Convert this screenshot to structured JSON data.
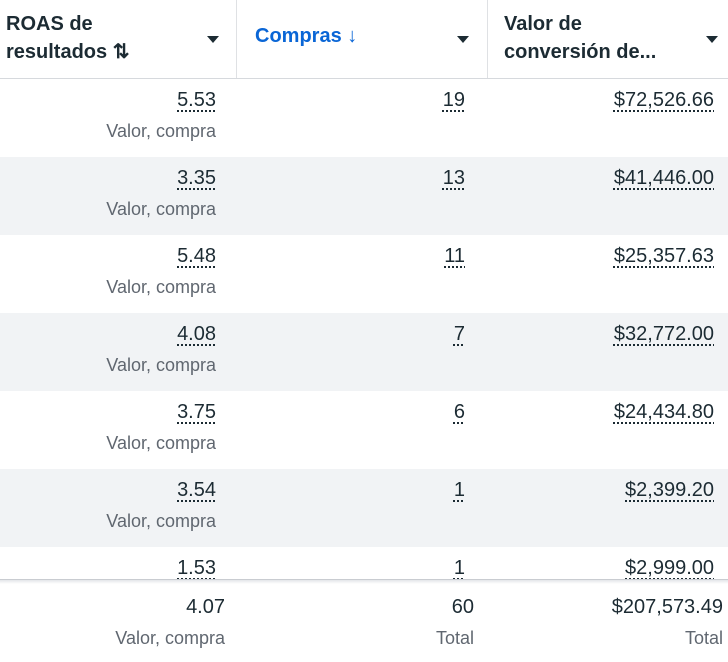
{
  "header": {
    "columns": [
      {
        "title_line1": "ROAS de",
        "title_line2": "resultados ⇅",
        "menu_icon": "caret-down-icon"
      },
      {
        "title": "Compras ↓",
        "sorted": true,
        "accent": "#0a66d6",
        "menu_icon": "caret-down-icon"
      },
      {
        "title_line1": "Valor de",
        "title_line2": "conversión de...",
        "menu_icon": "caret-down-icon"
      }
    ]
  },
  "rows": [
    {
      "roas": "5.53",
      "roas_label": "Valor, compra",
      "compras": "19",
      "valor": "$72,526.66"
    },
    {
      "roas": "3.35",
      "roas_label": "Valor, compra",
      "compras": "13",
      "valor": "$41,446.00"
    },
    {
      "roas": "5.48",
      "roas_label": "Valor, compra",
      "compras": "11",
      "valor": "$25,357.63"
    },
    {
      "roas": "4.08",
      "roas_label": "Valor, compra",
      "compras": "7",
      "valor": "$32,772.00"
    },
    {
      "roas": "3.75",
      "roas_label": "Valor, compra",
      "compras": "6",
      "valor": "$24,434.80"
    },
    {
      "roas": "3.54",
      "roas_label": "Valor, compra",
      "compras": "1",
      "valor": "$2,399.20"
    },
    {
      "roas": "1.53",
      "roas_label": "",
      "compras": "1",
      "valor": "$2,999.00"
    }
  ],
  "footer": {
    "roas": "4.07",
    "roas_label": "Valor, compra",
    "compras": "60",
    "compras_label": "Total",
    "valor": "$207,573.49",
    "valor_label": "Total"
  }
}
